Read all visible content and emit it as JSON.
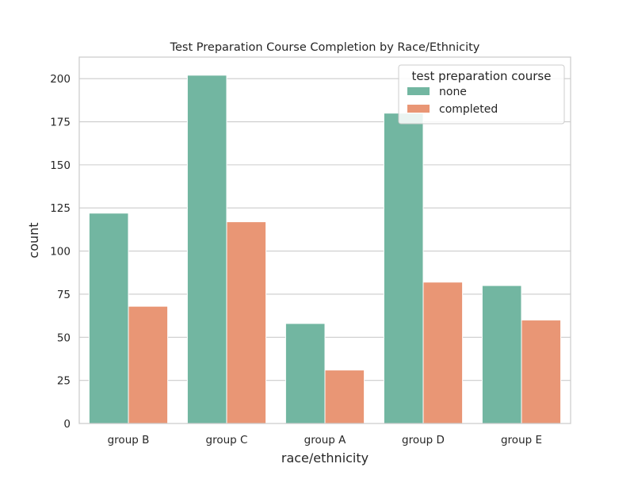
{
  "chart_data": {
    "type": "bar",
    "title": "Test Preparation Course Completion by Race/Ethnicity",
    "xlabel": "race/ethnicity",
    "ylabel": "count",
    "categories": [
      "group B",
      "group C",
      "group A",
      "group D",
      "group E"
    ],
    "series": [
      {
        "name": "none",
        "values": [
          122,
          202,
          58,
          180,
          80
        ],
        "color": "#72b6a1"
      },
      {
        "name": "completed",
        "values": [
          68,
          117,
          31,
          82,
          60
        ],
        "color": "#e99675"
      }
    ],
    "ylim": [
      0,
      212.5
    ],
    "yticks": [
      "0",
      "25",
      "50",
      "75",
      "100",
      "125",
      "150",
      "175",
      "200"
    ],
    "grid": true,
    "legend": {
      "title": "test preparation course",
      "placement": "top-right"
    }
  }
}
